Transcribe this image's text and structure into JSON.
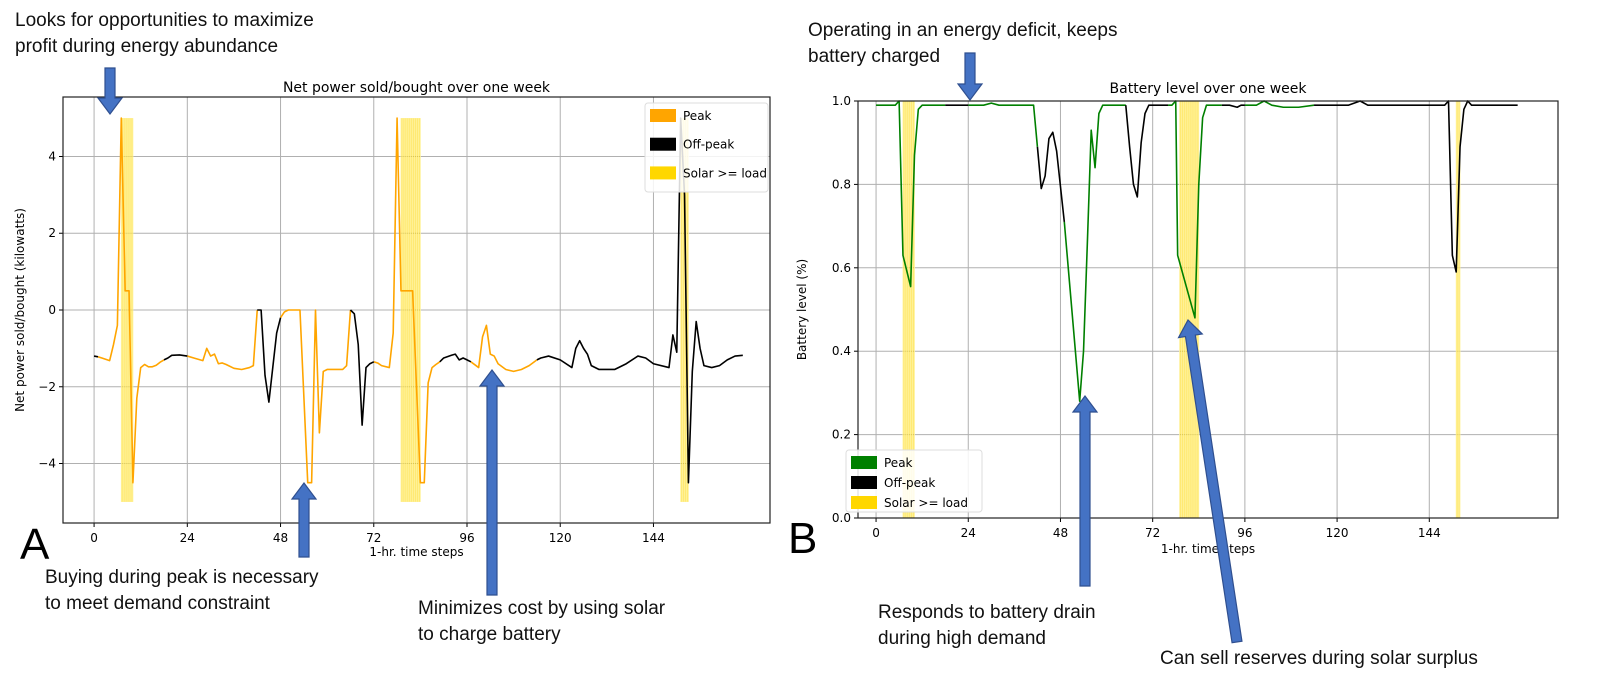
{
  "colors": {
    "peak_a": "#FFA500",
    "peak_b": "#008000",
    "offpeak": "#000000",
    "solar": "#FFD700",
    "arrow": "#4472C4",
    "grid": "#B0B0B0"
  },
  "panels": {
    "a": "A",
    "b": "B"
  },
  "annotations": {
    "a_top": [
      "Looks for opportunities to maximize",
      "profit during energy abundance"
    ],
    "a_bottom_left": [
      "Buying during peak is necessary",
      "to meet demand constraint"
    ],
    "a_bottom_right": [
      "Minimizes cost by using solar",
      "to charge battery"
    ],
    "b_top": [
      "Operating in an energy deficit, keeps",
      "battery charged"
    ],
    "b_bottom_left": [
      "Responds to battery drain",
      "during high demand"
    ],
    "b_bottom_right": [
      "Can sell reserves during solar surplus"
    ]
  },
  "chart_data": [
    {
      "type": "line",
      "title": "Net power sold/bought over one week",
      "xlabel": "1-hr. time steps",
      "ylabel": "Net power sold/bought (kilowatts)",
      "xlim": [
        -8,
        174
      ],
      "ylim": [
        -5.55,
        5.55
      ],
      "xticks": [
        0,
        24,
        48,
        72,
        96,
        120,
        144
      ],
      "xtick_labels": [
        "0",
        "24",
        "48",
        "72",
        "96",
        "120",
        "144"
      ],
      "yticks": [
        -4,
        -2,
        0,
        2,
        4
      ],
      "ytick_labels": [
        "−4",
        "−2",
        "0",
        "2",
        "4"
      ],
      "grid": true,
      "legend": {
        "placement": "top-right",
        "entries": [
          "Peak",
          "Off-peak",
          "Solar >= load"
        ]
      },
      "solar_spans": [
        [
          7,
          10
        ],
        [
          79,
          84
        ],
        [
          151,
          153
        ]
      ],
      "series": [
        {
          "name": "Peak",
          "segments": [
            [
              [
                1,
                -1.22
              ],
              [
                2,
                -1.25
              ],
              [
                4,
                -1.32
              ],
              [
                5,
                -0.9
              ],
              [
                6,
                -0.4
              ],
              [
                7,
                5
              ],
              [
                8,
                0.5
              ],
              [
                9,
                0.5
              ],
              [
                10,
                -4.5
              ],
              [
                11,
                -2.3
              ],
              [
                12,
                -1.5
              ],
              [
                13,
                -1.42
              ],
              [
                14,
                -1.48
              ],
              [
                15,
                -1.48
              ],
              [
                16,
                -1.44
              ],
              [
                17,
                -1.36
              ],
              [
                18,
                -1.3
              ]
            ],
            [
              [
                24,
                -1.2
              ],
              [
                26,
                -1.26
              ],
              [
                28,
                -1.32
              ],
              [
                29,
                -1.0
              ],
              [
                30,
                -1.2
              ],
              [
                31,
                -1.15
              ],
              [
                32,
                -1.4
              ],
              [
                33,
                -1.38
              ],
              [
                34,
                -1.42
              ],
              [
                36,
                -1.52
              ],
              [
                38,
                -1.55
              ],
              [
                40,
                -1.5
              ],
              [
                41,
                -1.45
              ],
              [
                42,
                0
              ]
            ],
            [
              [
                48,
                -0.2
              ],
              [
                49,
                -0.05
              ],
              [
                50,
                0
              ],
              [
                53,
                0
              ],
              [
                55,
                -4.5
              ],
              [
                56,
                -4.5
              ],
              [
                57,
                0
              ],
              [
                58,
                -3.2
              ],
              [
                59,
                -1.6
              ],
              [
                60,
                -1.55
              ],
              [
                64,
                -1.55
              ],
              [
                65,
                -1.45
              ],
              [
                66,
                0
              ]
            ],
            [
              [
                72,
                -1.35
              ],
              [
                73,
                -1.38
              ],
              [
                74,
                -1.45
              ],
              [
                76,
                -1.5
              ],
              [
                77,
                -0.6
              ],
              [
                78,
                5
              ],
              [
                79,
                0.5
              ],
              [
                82,
                0.5
              ],
              [
                84,
                -4.5
              ],
              [
                85,
                -4.5
              ],
              [
                86,
                -1.9
              ],
              [
                87,
                -1.5
              ],
              [
                88,
                -1.42
              ],
              [
                89,
                -1.35
              ]
            ],
            [
              [
                97,
                -1.35
              ],
              [
                99,
                -1.5
              ],
              [
                100,
                -0.7
              ],
              [
                101,
                -0.4
              ],
              [
                102,
                -1.15
              ],
              [
                103,
                -1.2
              ],
              [
                104,
                -1.4
              ],
              [
                106,
                -1.55
              ],
              [
                108,
                -1.6
              ],
              [
                110,
                -1.55
              ],
              [
                112,
                -1.45
              ],
              [
                114,
                -1.3
              ]
            ]
          ]
        },
        {
          "name": "Off-peak",
          "segments": [
            [
              [
                0,
                -1.2
              ],
              [
                1,
                -1.22
              ]
            ],
            [
              [
                18,
                -1.3
              ],
              [
                19,
                -1.25
              ],
              [
                20,
                -1.18
              ],
              [
                22,
                -1.17
              ],
              [
                24,
                -1.2
              ]
            ],
            [
              [
                42,
                0
              ],
              [
                43,
                0
              ],
              [
                44,
                -1.7
              ],
              [
                45,
                -2.4
              ],
              [
                46,
                -1.5
              ],
              [
                47,
                -0.6
              ],
              [
                48,
                -0.2
              ]
            ],
            [
              [
                66,
                0
              ],
              [
                67,
                -0.1
              ],
              [
                68,
                -0.9
              ],
              [
                69,
                -3.0
              ],
              [
                70,
                -1.5
              ],
              [
                71,
                -1.4
              ],
              [
                72,
                -1.35
              ]
            ],
            [
              [
                89,
                -1.35
              ],
              [
                90,
                -1.25
              ],
              [
                92,
                -1.18
              ],
              [
                93,
                -1.15
              ],
              [
                94,
                -1.3
              ],
              [
                95,
                -1.25
              ],
              [
                96,
                -1.3
              ],
              [
                97,
                -1.35
              ]
            ],
            [
              [
                114,
                -1.3
              ],
              [
                115,
                -1.25
              ],
              [
                117,
                -1.2
              ],
              [
                120,
                -1.3
              ],
              [
                123,
                -1.5
              ],
              [
                124,
                -1.0
              ],
              [
                125,
                -0.8
              ],
              [
                126,
                -1.0
              ],
              [
                127,
                -1.15
              ],
              [
                128,
                -1.45
              ],
              [
                130,
                -1.55
              ],
              [
                134,
                -1.55
              ],
              [
                137,
                -1.4
              ],
              [
                140,
                -1.2
              ],
              [
                142,
                -1.25
              ],
              [
                144,
                -1.4
              ],
              [
                148,
                -1.5
              ],
              [
                149,
                -0.65
              ],
              [
                150,
                -1.1
              ],
              [
                151,
                5
              ],
              [
                152,
                3
              ],
              [
                153,
                -4.5
              ],
              [
                154,
                -1.6
              ],
              [
                155,
                -0.3
              ],
              [
                156,
                -1.0
              ],
              [
                157,
                -1.45
              ],
              [
                159,
                -1.5
              ],
              [
                161,
                -1.45
              ],
              [
                163,
                -1.3
              ],
              [
                165,
                -1.2
              ],
              [
                167,
                -1.18
              ]
            ]
          ]
        }
      ]
    },
    {
      "type": "line",
      "title": "Battery level over one week",
      "xlabel": "1-hr. time steps",
      "ylabel": "Battery level (%)",
      "xlim": [
        -4.7,
        177.5
      ],
      "ylim": [
        0,
        1
      ],
      "xticks": [
        0,
        24,
        48,
        72,
        96,
        120,
        144
      ],
      "xtick_labels": [
        "0",
        "24",
        "48",
        "72",
        "96",
        "120",
        "144"
      ],
      "yticks": [
        0,
        0.2,
        0.4,
        0.6,
        0.8,
        1.0
      ],
      "ytick_labels": [
        "0.0",
        "0.2",
        "0.4",
        "0.6",
        "0.8",
        "1.0"
      ],
      "grid": true,
      "legend": {
        "placement": "bottom-left",
        "entries": [
          "Peak",
          "Off-peak",
          "Solar >= load"
        ]
      },
      "solar_spans": [
        [
          7,
          10
        ],
        [
          79,
          84
        ],
        [
          151,
          152
        ]
      ],
      "series": [
        {
          "name": "Peak",
          "segments": [
            [
              [
                0,
                0.99
              ],
              [
                4,
                0.99
              ],
              [
                5,
                0.99
              ],
              [
                6,
                1.0
              ],
              [
                7,
                0.63
              ],
              [
                9,
                0.555
              ],
              [
                10,
                0.87
              ],
              [
                11,
                0.98
              ],
              [
                12,
                0.99
              ],
              [
                18,
                0.99
              ]
            ],
            [
              [
                24,
                0.99
              ],
              [
                28,
                0.99
              ],
              [
                30,
                0.995
              ],
              [
                32,
                0.99
              ],
              [
                41,
                0.99
              ],
              [
                42,
                0.89
              ]
            ],
            [
              [
                49,
                0.71
              ],
              [
                53,
                0.28
              ],
              [
                54,
                0.4
              ],
              [
                55,
                0.66
              ],
              [
                56,
                0.93
              ],
              [
                57,
                0.84
              ],
              [
                58,
                0.97
              ],
              [
                59,
                0.99
              ],
              [
                65,
                0.99
              ]
            ],
            [
              [
                76,
                0.99
              ],
              [
                77,
                0.99
              ],
              [
                78,
                1.0
              ],
              [
                78.5,
                0.63
              ],
              [
                83,
                0.48
              ],
              [
                84,
                0.8
              ],
              [
                85,
                0.96
              ],
              [
                86,
                0.99
              ],
              [
                90,
                0.99
              ]
            ],
            [
              [
                96,
                0.99
              ],
              [
                99,
                0.99
              ],
              [
                101,
                1.0
              ],
              [
                103,
                0.99
              ],
              [
                106,
                0.985
              ],
              [
                110,
                0.985
              ],
              [
                114,
                0.99
              ]
            ]
          ]
        },
        {
          "name": "Off-peak",
          "segments": [
            [
              [
                18,
                0.99
              ],
              [
                24,
                0.99
              ]
            ],
            [
              [
                42,
                0.89
              ],
              [
                43,
                0.79
              ],
              [
                44,
                0.82
              ],
              [
                45,
                0.91
              ],
              [
                46,
                0.925
              ],
              [
                47,
                0.88
              ],
              [
                49,
                0.71
              ]
            ],
            [
              [
                65,
                0.99
              ],
              [
                66,
                0.89
              ],
              [
                67,
                0.8
              ],
              [
                68,
                0.77
              ],
              [
                69,
                0.9
              ],
              [
                70,
                0.97
              ],
              [
                71,
                0.99
              ],
              [
                76,
                0.99
              ]
            ],
            [
              [
                90,
                0.99
              ],
              [
                92,
                0.99
              ],
              [
                94,
                0.985
              ],
              [
                95,
                0.99
              ],
              [
                96,
                0.99
              ]
            ],
            [
              [
                114,
                0.99
              ],
              [
                120,
                0.99
              ],
              [
                123,
                0.99
              ],
              [
                126,
                1.0
              ],
              [
                128,
                0.99
              ],
              [
                132,
                0.99
              ],
              [
                140,
                0.99
              ],
              [
                148,
                0.99
              ],
              [
                149,
                1.0
              ],
              [
                150,
                0.63
              ],
              [
                151,
                0.59
              ],
              [
                152,
                0.89
              ],
              [
                153,
                0.98
              ],
              [
                154,
                1.0
              ],
              [
                155,
                0.99
              ],
              [
                160,
                0.99
              ],
              [
                167,
                0.99
              ]
            ]
          ]
        }
      ]
    }
  ]
}
